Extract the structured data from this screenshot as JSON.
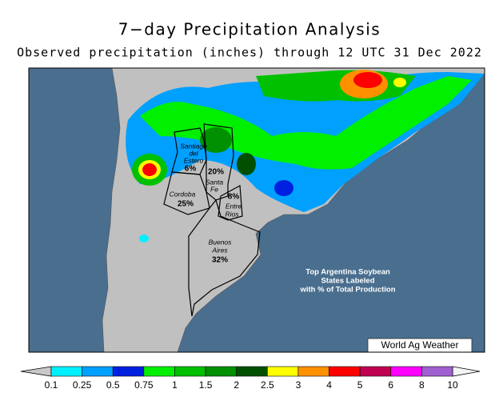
{
  "header": {
    "title": "7−day Precipitation Analysis",
    "subtitle": "Observed precipitation (inches) through 12 UTC 31 Dec 2022"
  },
  "map": {
    "states": [
      {
        "name_lines": [
          "Santiago",
          "del",
          "Estero"
        ],
        "share": "6%"
      },
      {
        "name_lines": [
          "Santa",
          "Fe"
        ],
        "share": "20%"
      },
      {
        "name_lines": [
          "Cordoba"
        ],
        "share": "25%"
      },
      {
        "name_lines": [
          "Entre",
          "Rios"
        ],
        "share": "8%"
      },
      {
        "name_lines": [
          "Buenos",
          "Aires"
        ],
        "share": "32%"
      }
    ],
    "note": [
      "Top Argentina Soybean",
      "States Labeled",
      "with % of Total Production"
    ],
    "credit": "World Ag Weather"
  },
  "legend": {
    "ticks": [
      0.1,
      0.25,
      0.5,
      0.75,
      1,
      1.5,
      2,
      2.5,
      3,
      4,
      5,
      6,
      8,
      10
    ],
    "colors": [
      "#00f0ff",
      "#00a0ff",
      "#0020e0",
      "#00f000",
      "#00c000",
      "#009000",
      "#005000",
      "#ffff00",
      "#ff9000",
      "#ff0000",
      "#c00050",
      "#ff00ff",
      "#a060d0"
    ],
    "under_color": "#c8c8c8",
    "over_color": "#f4f4f4"
  }
}
